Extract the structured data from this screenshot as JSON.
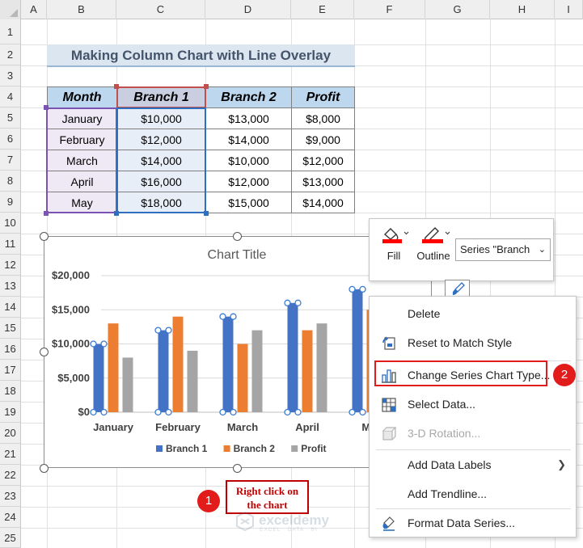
{
  "columns": [
    "A",
    "B",
    "C",
    "D",
    "E",
    "F",
    "G",
    "H",
    "I"
  ],
  "rows": [
    "1",
    "2",
    "3",
    "4",
    "5",
    "6",
    "7",
    "8",
    "9",
    "10",
    "11",
    "12",
    "13",
    "14",
    "15",
    "16",
    "17",
    "18",
    "19",
    "20",
    "21",
    "22",
    "23",
    "24",
    "25"
  ],
  "sheet_title": "Making Column Chart with Line Overlay",
  "table": {
    "headers": [
      "Month",
      "Branch 1",
      "Branch 2",
      "Profit"
    ],
    "rows": [
      [
        "January",
        "$10,000",
        "$13,000",
        "$8,000"
      ],
      [
        "February",
        "$12,000",
        "$14,000",
        "$9,000"
      ],
      [
        "March",
        "$14,000",
        "$10,000",
        "$12,000"
      ],
      [
        "April",
        "$16,000",
        "$12,000",
        "$13,000"
      ],
      [
        "May",
        "$18,000",
        "$15,000",
        "$14,000"
      ]
    ]
  },
  "chart_data": {
    "type": "bar",
    "title": "Chart Title",
    "categories": [
      "January",
      "February",
      "March",
      "April",
      "May"
    ],
    "series": [
      {
        "name": "Branch 1",
        "values": [
          10000,
          12000,
          14000,
          16000,
          18000
        ],
        "color": "#4472c4"
      },
      {
        "name": "Branch 2",
        "values": [
          13000,
          14000,
          10000,
          12000,
          15000
        ],
        "color": "#ed7d31"
      },
      {
        "name": "Profit",
        "values": [
          8000,
          9000,
          12000,
          13000,
          14000
        ],
        "color": "#a5a5a5"
      }
    ],
    "yticks": [
      "$0",
      "$5,000",
      "$10,000",
      "$15,000",
      "$20,000"
    ],
    "ylim": [
      0,
      20000
    ],
    "grid": true,
    "legend_position": "bottom"
  },
  "mini_toolbar": {
    "fill_label": "Fill",
    "outline_label": "Outline",
    "series_selector_value": "Series \"Branch",
    "icons": [
      "paint-bucket-icon",
      "pen-outline-icon",
      "brush-icon"
    ]
  },
  "context_menu": {
    "items": [
      {
        "label": "Delete",
        "icon": "",
        "disabled": false
      },
      {
        "label": "Reset to Match Style",
        "icon": "reset-style-icon",
        "disabled": false
      },
      {
        "label": "Change Series Chart Type...",
        "icon": "change-chart-type-icon",
        "disabled": false
      },
      {
        "label": "Select Data...",
        "icon": "select-data-icon",
        "disabled": false
      },
      {
        "label": "3-D Rotation...",
        "icon": "rotation-3d-icon",
        "disabled": true
      },
      {
        "label": "Add Data Labels",
        "icon": "",
        "disabled": false,
        "submenu": true
      },
      {
        "label": "Add Trendline...",
        "icon": "",
        "disabled": false
      },
      {
        "label": "Format Data Series...",
        "icon": "format-series-icon",
        "disabled": false
      }
    ]
  },
  "annotations": {
    "step1_number": "1",
    "step1_text_line1": "Right click on",
    "step1_text_line2": "the chart",
    "step2_number": "2"
  },
  "watermark": {
    "name": "exceldemy",
    "sub": "EXCEL · DATA · BI"
  },
  "colors": {
    "accent_red": "#e21b1b",
    "header_fill": "#bdd7ee",
    "title_fill": "#dce6f1"
  }
}
